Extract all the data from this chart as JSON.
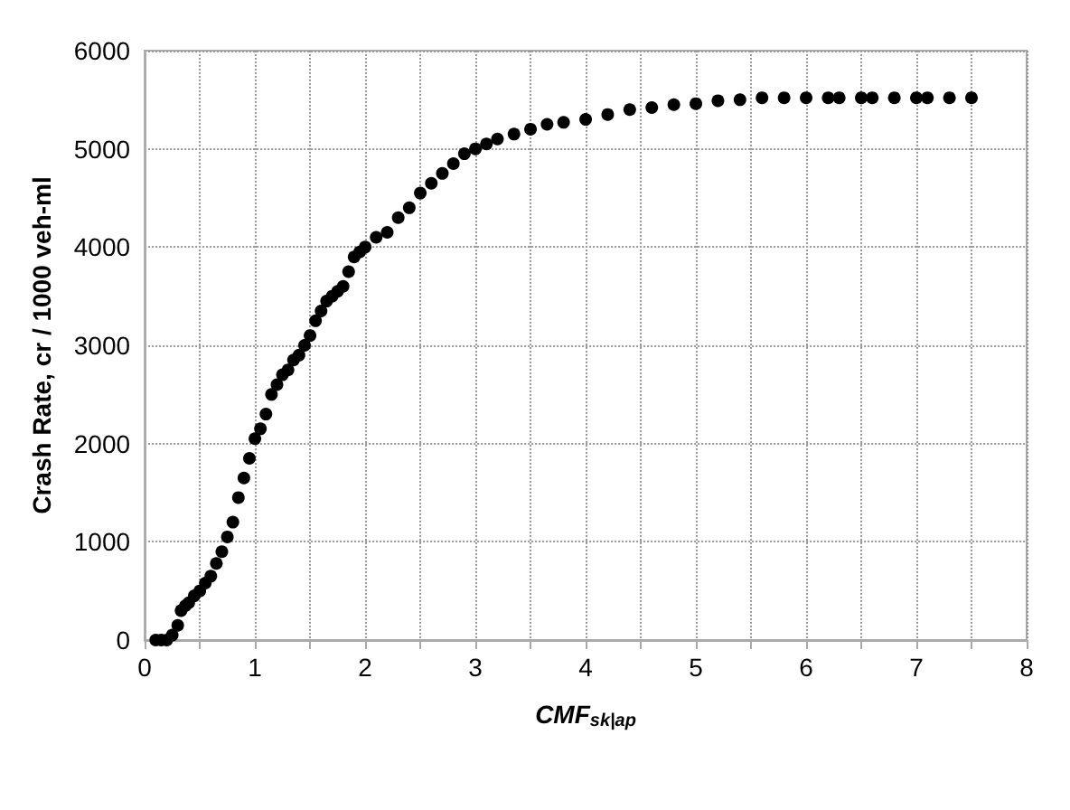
{
  "chart_data": {
    "type": "scatter",
    "xlabel": "CMF$_{sk|ap}$",
    "ylabel": "Crash Rate, cr / 1000 veh-ml",
    "x": [
      0.1,
      0.15,
      0.2,
      0.25,
      0.3,
      0.33,
      0.37,
      0.4,
      0.45,
      0.5,
      0.55,
      0.6,
      0.65,
      0.7,
      0.75,
      0.8,
      0.85,
      0.9,
      0.95,
      1.0,
      1.05,
      1.1,
      1.15,
      1.2,
      1.25,
      1.3,
      1.35,
      1.4,
      1.45,
      1.5,
      1.55,
      1.6,
      1.65,
      1.7,
      1.75,
      1.8,
      1.85,
      1.9,
      1.95,
      2.0,
      2.1,
      2.2,
      2.3,
      2.4,
      2.5,
      2.6,
      2.7,
      2.8,
      2.9,
      3.0,
      3.1,
      3.2,
      3.35,
      3.5,
      3.65,
      3.8,
      4.0,
      4.2,
      4.4,
      4.6,
      4.8,
      5.0,
      5.2,
      5.4,
      5.6,
      5.8,
      6.0,
      6.2,
      6.3,
      6.5,
      6.6,
      6.8,
      7.0,
      7.1,
      7.3,
      7.5
    ],
    "series": [
      {
        "color": "#000000",
        "values": [
          0,
          0,
          0,
          50,
          150,
          300,
          350,
          380,
          450,
          500,
          580,
          650,
          780,
          900,
          1050,
          1200,
          1450,
          1650,
          1850,
          2050,
          2150,
          2300,
          2500,
          2600,
          2700,
          2750,
          2850,
          2900,
          3000,
          3100,
          3250,
          3350,
          3450,
          3500,
          3550,
          3600,
          3750,
          3900,
          3950,
          4000,
          4100,
          4150,
          4300,
          4400,
          4550,
          4650,
          4750,
          4850,
          4950,
          5000,
          5050,
          5100,
          5150,
          5200,
          5250,
          5270,
          5300,
          5350,
          5400,
          5420,
          5450,
          5460,
          5490,
          5500,
          5520,
          5520,
          5520,
          5520,
          5520,
          5520,
          5520,
          5520,
          5520,
          5520,
          5520,
          5520
        ]
      }
    ],
    "xlim": [
      0,
      8
    ],
    "xticks": [
      0,
      {
        "value": 0.5,
        "label": null
      },
      1,
      {
        "value": 1.5,
        "label": null
      },
      2,
      {
        "value": 2.5,
        "label": null
      },
      3,
      {
        "value": 3.5,
        "label": null
      },
      4,
      {
        "value": 4.5,
        "label": null
      },
      5,
      {
        "value": 5.5,
        "label": null
      },
      6,
      {
        "value": 6.5,
        "label": null
      },
      7,
      {
        "value": 7.5,
        "label": null
      },
      8
    ],
    "ylim": [
      0,
      6000
    ],
    "yticks": [
      0,
      1000,
      2000,
      3000,
      4000,
      5000,
      6000
    ],
    "grid": true,
    "marker": "circle"
  }
}
